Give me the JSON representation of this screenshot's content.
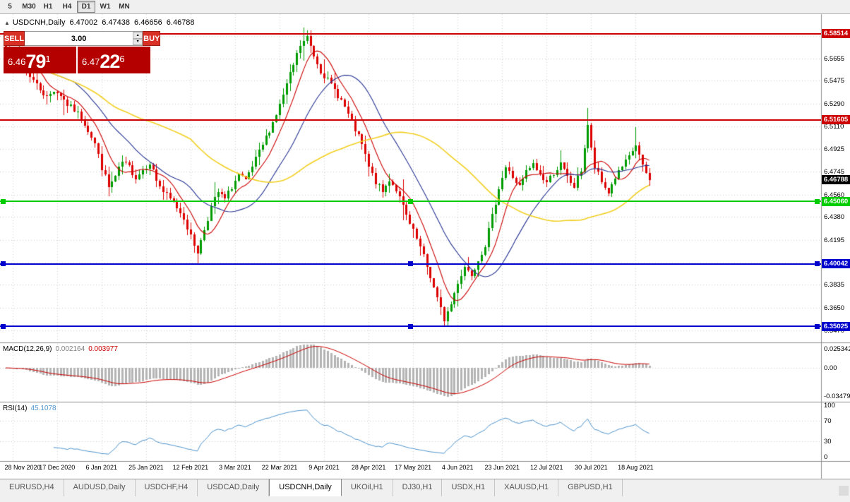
{
  "toolbar": {
    "timeframes": [
      {
        "label": "5",
        "active": false
      },
      {
        "label": "M30",
        "active": false
      },
      {
        "label": "H1",
        "active": false
      },
      {
        "label": "H4",
        "active": false
      },
      {
        "label": "D1",
        "active": true
      },
      {
        "label": "W1",
        "active": false
      },
      {
        "label": "MN",
        "active": false
      }
    ]
  },
  "icons": {
    "collapse": "▲",
    "spinner_up": "▴",
    "spinner_down": "▾"
  },
  "header": {
    "symbol": "USDCNH,Daily",
    "open": "6.47002",
    "high": "6.47438",
    "low": "6.46656",
    "close": "6.46788"
  },
  "trade_panel": {
    "sell_label": "SELL",
    "buy_label": "BUY",
    "lot_value": "3.00",
    "bid": {
      "big": "6.46",
      "pips": "79",
      "sup": "1"
    },
    "ask": {
      "big": "6.47",
      "pips": "22",
      "sup": "6"
    }
  },
  "price_axis": {
    "ticks": [
      "6.5835",
      "6.5655",
      "6.5475",
      "6.5290",
      "6.5110",
      "6.4925",
      "6.4745",
      "6.4560",
      "6.4380",
      "6.4195",
      "6.4015",
      "6.3835",
      "6.3650",
      "6.3470"
    ],
    "current": {
      "label": "6.46788",
      "value": 6.46788,
      "color": "#000000"
    }
  },
  "hlines": [
    {
      "value": 6.58514,
      "label": "6.58514",
      "color": "#cc0000",
      "height": 2,
      "handles": false
    },
    {
      "value": 6.51605,
      "label": "6.51605",
      "color": "#cc0000",
      "height": 2,
      "handles": false
    },
    {
      "value": 6.4506,
      "label": "6.45060",
      "color": "#00cc00",
      "height": 2,
      "handles": true
    },
    {
      "value": 6.40042,
      "label": "6.40042",
      "color": "#0000cc",
      "height": 2,
      "handles": true
    },
    {
      "value": 6.35025,
      "label": "6.35025",
      "color": "#0000cc",
      "height": 2,
      "handles": true
    }
  ],
  "macd_panel": {
    "title": "MACD(12,26,9)",
    "value_main": "0.002164",
    "value_signal": "0.003977",
    "axis_top": "0.025342",
    "axis_zero": "0.00",
    "axis_bottom": "-0.03479",
    "histogram_color": "#b4b4b4",
    "signal_color": "#cc0000"
  },
  "rsi_panel": {
    "title": "RSI(14)",
    "value": "45.1078",
    "axis": [
      {
        "label": "100",
        "value": 100
      },
      {
        "label": "70",
        "value": 70
      },
      {
        "label": "30",
        "value": 30
      },
      {
        "label": "0",
        "value": 0
      }
    ],
    "levels": [
      70,
      30
    ],
    "line_color": "#4f94cd"
  },
  "date_axis": {
    "labels": [
      "28 Nov 2020",
      "17 Dec 2020",
      "6 Jan 2021",
      "25 Jan 2021",
      "12 Feb 2021",
      "3 Mar 2021",
      "22 Mar 2021",
      "9 Apr 2021",
      "28 Apr 2021",
      "17 May 2021",
      "4 Jun 2021",
      "23 Jun 2021",
      "12 Jul 2021",
      "30 Jul 2021",
      "18 Aug 2021"
    ],
    "indices": [
      2,
      15,
      28,
      41,
      54,
      67,
      80,
      93,
      106,
      119,
      132,
      145,
      158,
      171,
      184
    ]
  },
  "tabs": [
    {
      "label": "EURUSD,H4",
      "active": false
    },
    {
      "label": "AUDUSD,Daily",
      "active": false
    },
    {
      "label": "USDCHF,H4",
      "active": false
    },
    {
      "label": "USDCAD,Daily",
      "active": false
    },
    {
      "label": "USDCNH,Daily",
      "active": true
    },
    {
      "label": "UKOil,H1",
      "active": false
    },
    {
      "label": "DJ30,H1",
      "active": false
    },
    {
      "label": "USDX,H1",
      "active": false
    },
    {
      "label": "XAUUSD,H1",
      "active": false
    },
    {
      "label": "GBPUSD,H1",
      "active": false
    }
  ],
  "chart_data": {
    "type": "candlestick",
    "symbol": "USDCNH",
    "timeframe": "Daily",
    "count": 189,
    "price_max": 6.601,
    "price_min": 6.3378,
    "up_color": "#009b00",
    "down_color": "#dd0000",
    "anchors": [
      [
        0,
        6.576
      ],
      [
        2,
        6.562
      ],
      [
        4,
        6.571
      ],
      [
        6,
        6.556
      ],
      [
        8,
        6.548
      ],
      [
        10,
        6.541
      ],
      [
        12,
        6.534
      ],
      [
        14,
        6.54
      ],
      [
        16,
        6.536
      ],
      [
        18,
        6.528
      ],
      [
        20,
        6.524
      ],
      [
        22,
        6.518
      ],
      [
        24,
        6.508
      ],
      [
        26,
        6.497
      ],
      [
        28,
        6.478
      ],
      [
        30,
        6.462
      ],
      [
        32,
        6.47
      ],
      [
        34,
        6.482
      ],
      [
        36,
        6.478
      ],
      [
        38,
        6.47
      ],
      [
        40,
        6.476
      ],
      [
        42,
        6.482
      ],
      [
        44,
        6.468
      ],
      [
        46,
        6.458
      ],
      [
        48,
        6.452
      ],
      [
        50,
        6.446
      ],
      [
        52,
        6.438
      ],
      [
        54,
        6.422
      ],
      [
        56,
        6.41
      ],
      [
        58,
        6.428
      ],
      [
        60,
        6.446
      ],
      [
        62,
        6.458
      ],
      [
        64,
        6.452
      ],
      [
        66,
        6.462
      ],
      [
        68,
        6.472
      ],
      [
        70,
        6.466
      ],
      [
        72,
        6.478
      ],
      [
        74,
        6.49
      ],
      [
        76,
        6.502
      ],
      [
        78,
        6.514
      ],
      [
        80,
        6.528
      ],
      [
        82,
        6.544
      ],
      [
        84,
        6.56
      ],
      [
        86,
        6.576
      ],
      [
        88,
        6.582
      ],
      [
        90,
        6.568
      ],
      [
        92,
        6.556
      ],
      [
        94,
        6.548
      ],
      [
        96,
        6.54
      ],
      [
        98,
        6.532
      ],
      [
        100,
        6.52
      ],
      [
        102,
        6.508
      ],
      [
        104,
        6.496
      ],
      [
        106,
        6.478
      ],
      [
        108,
        6.466
      ],
      [
        110,
        6.458
      ],
      [
        112,
        6.468
      ],
      [
        114,
        6.46
      ],
      [
        116,
        6.446
      ],
      [
        118,
        6.432
      ],
      [
        120,
        6.42
      ],
      [
        122,
        6.406
      ],
      [
        124,
        6.39
      ],
      [
        126,
        6.372
      ],
      [
        128,
        6.356
      ],
      [
        130,
        6.368
      ],
      [
        132,
        6.386
      ],
      [
        134,
        6.398
      ],
      [
        136,
        6.392
      ],
      [
        138,
        6.404
      ],
      [
        140,
        6.416
      ],
      [
        142,
        6.438
      ],
      [
        144,
        6.462
      ],
      [
        146,
        6.478
      ],
      [
        148,
        6.47
      ],
      [
        150,
        6.462
      ],
      [
        152,
        6.474
      ],
      [
        154,
        6.48
      ],
      [
        156,
        6.472
      ],
      [
        158,
        6.466
      ],
      [
        160,
        6.474
      ],
      [
        162,
        6.48
      ],
      [
        164,
        6.47
      ],
      [
        166,
        6.462
      ],
      [
        168,
        6.476
      ],
      [
        170,
        6.512
      ],
      [
        171,
        6.492
      ],
      [
        172,
        6.478
      ],
      [
        174,
        6.466
      ],
      [
        176,
        6.458
      ],
      [
        178,
        6.47
      ],
      [
        180,
        6.478
      ],
      [
        182,
        6.486
      ],
      [
        184,
        6.496
      ],
      [
        186,
        6.478
      ],
      [
        188,
        6.468
      ]
    ],
    "overrides": {
      "56": {
        "low": 6.4006
      },
      "88": {
        "high": 6.5878
      },
      "128": {
        "low": 6.3504
      },
      "170": {
        "high": 6.5258
      },
      "184": {
        "high": 6.5105
      },
      "188": {
        "close": 6.46788
      }
    },
    "moving_averages": [
      {
        "period": 8,
        "color": "#cc0000"
      },
      {
        "period": 21,
        "color": "#283593"
      },
      {
        "period": 55,
        "color": "#f2d022"
      }
    ],
    "macd": {
      "fast": 12,
      "slow": 26,
      "signal": 9
    },
    "rsi": {
      "period": 14
    }
  }
}
